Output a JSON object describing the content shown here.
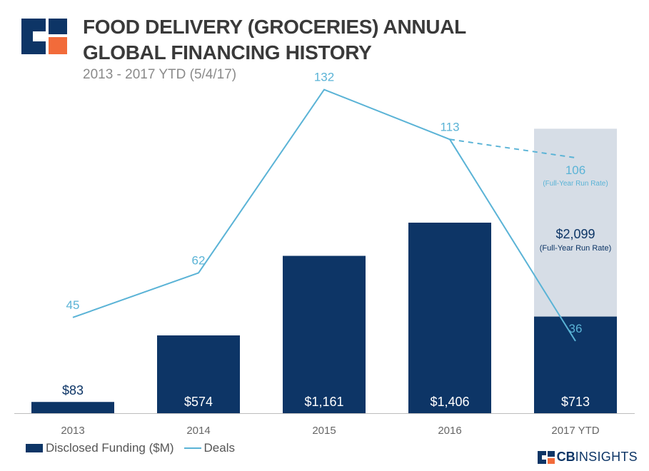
{
  "header": {
    "title": "FOOD DELIVERY (GROCERIES) ANNUAL GLOBAL FINANCING HISTORY",
    "subtitle": "2013 - 2017 YTD (5/4/17)"
  },
  "brand": {
    "cb": "CB",
    "rest": "INSIGHTS"
  },
  "colors": {
    "bar": "#0d3566",
    "line": "#5ab3d6",
    "projection_bg": "#d6dde6",
    "logo_orange": "#f26b3a"
  },
  "chart_data": {
    "type": "bar",
    "categories": [
      "2013",
      "2014",
      "2015",
      "2016",
      "2017 YTD"
    ],
    "series": [
      {
        "name": "Disclosed Funding ($M)",
        "type": "bar",
        "values": [
          83,
          574,
          1161,
          1406,
          713
        ],
        "labels": [
          "$83",
          "$574",
          "$1,161",
          "$1,406",
          "$713"
        ]
      },
      {
        "name": "Deals",
        "type": "line",
        "values": [
          45,
          62,
          132,
          113,
          36
        ],
        "labels": [
          "45",
          "62",
          "132",
          "113",
          "36"
        ]
      }
    ],
    "projections": {
      "funding": {
        "value": 2099,
        "label": "$2,099",
        "note": "(Full-Year Run Rate)"
      },
      "deals": {
        "value": 106,
        "label": "106",
        "note": "(Full-Year Run Rate)"
      }
    },
    "legend_position": "bottom-left",
    "grid": false
  }
}
